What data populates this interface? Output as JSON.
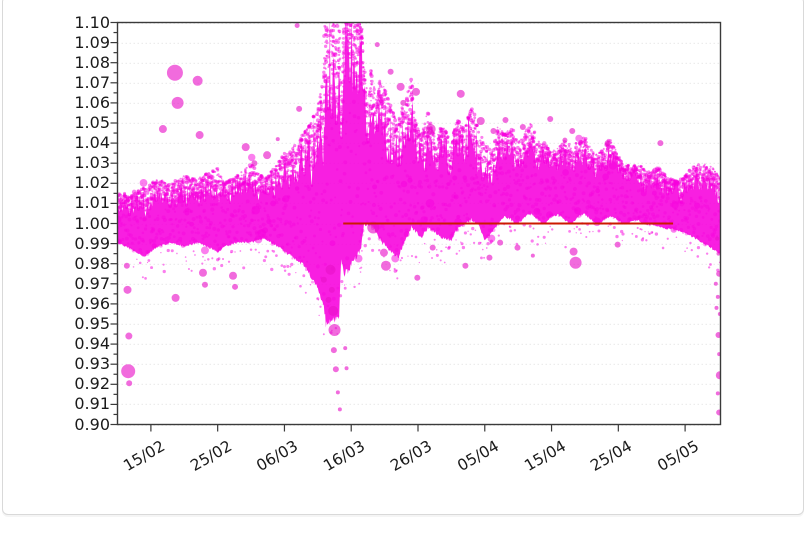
{
  "page": {
    "background": "#ffffff",
    "card_border": "#d9d9d9"
  },
  "chart_data": {
    "type": "scatter",
    "title": "",
    "xlabel": "",
    "ylabel": "",
    "x_axis": {
      "tick_labels": [
        "15/02",
        "25/02",
        "06/03",
        "16/03",
        "26/03",
        "05/04",
        "15/04",
        "25/04",
        "05/05"
      ],
      "tick_days": [
        5,
        15,
        25,
        35,
        45,
        55,
        65,
        75,
        85
      ],
      "domain_days": [
        0,
        90.3
      ],
      "start_day_date": "10/02",
      "label_rotation_deg": 30
    },
    "y_axis": {
      "min": 0.9,
      "max": 1.1,
      "major_step": 0.01,
      "minor_step": 0.005,
      "tick_labels": [
        "1.10",
        "1.09",
        "1.08",
        "1.07",
        "1.06",
        "1.05",
        "1.04",
        "1.03",
        "1.02",
        "1.01",
        "1.00",
        "0.99",
        "0.98",
        "0.97",
        "0.96",
        "0.95",
        "0.94",
        "0.93",
        "0.92",
        "0.91",
        "0.90"
      ]
    },
    "grid": {
      "horizontal": true,
      "vertical": false,
      "color": "#bdbdbd"
    },
    "legend": null,
    "reference_line": {
      "y": 1.0,
      "from_day": 33.8,
      "to_day": 83.2,
      "color": "#cc1a00",
      "width": 2
    },
    "series": {
      "name": "ratio-bubble-scatter",
      "marker": "circle",
      "color": "#f700dd",
      "description": "dense cloud of variable-size magenta bubbles around 1.00; extreme volatility spike mid-March exceeding the 1.10 axis limit, with low excursions to 0.90; band re-centers near 1.02 afterwards and tightens toward early May; final-day smear down to 0.90 at right edge"
    },
    "band_envelope": [
      [
        0,
        0.99,
        1.016
      ],
      [
        2,
        0.987,
        1.014
      ],
      [
        4,
        0.983,
        1.018
      ],
      [
        6,
        0.988,
        1.022
      ],
      [
        8,
        0.99,
        1.02
      ],
      [
        10,
        0.988,
        1.024
      ],
      [
        12,
        0.99,
        1.022
      ],
      [
        14,
        0.987,
        1.026
      ],
      [
        15,
        0.985,
        1.028
      ],
      [
        16,
        0.988,
        1.02
      ],
      [
        18,
        0.99,
        1.024
      ],
      [
        20,
        0.99,
        1.03
      ],
      [
        22,
        0.992,
        1.022
      ],
      [
        24,
        0.988,
        1.03
      ],
      [
        25,
        0.985,
        1.035
      ],
      [
        26,
        0.983,
        1.038
      ],
      [
        27,
        0.98,
        1.04
      ],
      [
        28,
        0.978,
        1.046
      ],
      [
        29,
        0.972,
        1.05
      ],
      [
        30,
        0.966,
        1.058
      ],
      [
        30.8,
        0.958,
        1.072
      ],
      [
        31.2,
        0.948,
        1.115
      ],
      [
        33.2,
        0.952,
        1.115
      ],
      [
        33.5,
        0.982,
        1.058
      ],
      [
        33.9,
        0.972,
        1.115
      ],
      [
        36.4,
        0.984,
        1.115
      ],
      [
        36.9,
        0.998,
        1.08
      ],
      [
        37.5,
        0.999,
        1.062
      ],
      [
        38.1,
        0.997,
        1.082
      ],
      [
        38.7,
        0.995,
        1.058
      ],
      [
        39.3,
        0.991,
        1.072
      ],
      [
        40,
        0.988,
        1.068
      ],
      [
        41,
        0.985,
        1.058
      ],
      [
        42,
        0.982,
        1.052
      ],
      [
        43,
        0.99,
        1.06
      ],
      [
        44,
        0.997,
        1.072
      ],
      [
        44.7,
        0.995,
        1.05
      ],
      [
        45.5,
        0.992,
        1.044
      ],
      [
        46.5,
        0.997,
        1.056
      ],
      [
        47.5,
        0.995,
        1.042
      ],
      [
        48.5,
        0.992,
        1.048
      ],
      [
        50,
        0.991,
        1.044
      ],
      [
        51,
        0.997,
        1.052
      ],
      [
        52,
        0.999,
        1.046
      ],
      [
        53,
        1.001,
        1.06
      ],
      [
        54,
        0.999,
        1.046
      ],
      [
        55,
        0.991,
        1.04
      ],
      [
        56,
        0.995,
        1.036
      ],
      [
        57,
        0.999,
        1.048
      ],
      [
        58,
        1.003,
        1.044
      ],
      [
        59,
        1.001,
        1.05
      ],
      [
        60,
        0.999,
        1.04
      ],
      [
        61,
        1.003,
        1.046
      ],
      [
        62,
        1.004,
        1.05
      ],
      [
        63,
        1.001,
        1.042
      ],
      [
        64,
        0.999,
        1.04
      ],
      [
        65,
        1.003,
        1.036
      ],
      [
        66,
        1.004,
        1.038
      ],
      [
        67,
        1.001,
        1.042
      ],
      [
        68,
        0.999,
        1.038
      ],
      [
        69,
        1.003,
        1.042
      ],
      [
        70,
        1.004,
        1.044
      ],
      [
        71,
        1.001,
        1.036
      ],
      [
        72,
        0.999,
        1.034
      ],
      [
        73,
        1.002,
        1.04
      ],
      [
        74,
        1.003,
        1.042
      ],
      [
        75,
        1.001,
        1.034
      ],
      [
        76,
        0.999,
        1.03
      ],
      [
        77,
        1.001,
        1.028
      ],
      [
        78,
        1.001,
        1.03
      ],
      [
        79,
        0.999,
        1.026
      ],
      [
        80,
        0.999,
        1.026
      ],
      [
        81,
        0.998,
        1.028
      ],
      [
        82,
        0.997,
        1.024
      ],
      [
        83,
        0.997,
        1.022
      ],
      [
        84,
        0.996,
        1.021
      ],
      [
        85,
        0.995,
        1.024
      ],
      [
        86,
        0.993,
        1.028
      ],
      [
        87,
        0.991,
        1.03
      ],
      [
        88,
        0.989,
        1.03
      ],
      [
        89,
        0.987,
        1.028
      ],
      [
        90.3,
        0.984,
        1.024
      ]
    ],
    "outlier_bubbles": [
      [
        1.4,
        0.979,
        3
      ],
      [
        1.5,
        0.967,
        4
      ],
      [
        1.7,
        0.944,
        3.5
      ],
      [
        1.6,
        0.9265,
        7
      ],
      [
        1.75,
        0.9205,
        3
      ],
      [
        6.8,
        1.047,
        4
      ],
      [
        8.6,
        1.075,
        8
      ],
      [
        9.0,
        1.06,
        6
      ],
      [
        12.0,
        1.071,
        5
      ],
      [
        12.3,
        1.044,
        4
      ],
      [
        8.7,
        0.963,
        4
      ],
      [
        12.8,
        0.9755,
        4
      ],
      [
        13.1,
        0.9695,
        3
      ],
      [
        17.3,
        0.974,
        4
      ],
      [
        17.6,
        0.9685,
        3
      ],
      [
        19.2,
        1.038,
        4
      ],
      [
        20.5,
        1.03,
        3
      ],
      [
        22.4,
        1.034,
        4
      ],
      [
        24.0,
        1.042,
        2
      ],
      [
        26.9,
        1.0985,
        2.5
      ],
      [
        27.2,
        1.057,
        3
      ],
      [
        30.2,
        1.048,
        3
      ],
      [
        30.9,
        0.972,
        3
      ],
      [
        31.6,
        0.962,
        3
      ],
      [
        31.9,
        0.977,
        5
      ],
      [
        32.1,
        0.967,
        3
      ],
      [
        32.3,
        0.9565,
        5
      ],
      [
        32.5,
        0.947,
        6
      ],
      [
        32.4,
        0.937,
        3
      ],
      [
        32.7,
        0.9275,
        3
      ],
      [
        33.0,
        0.916,
        2
      ],
      [
        33.3,
        0.9075,
        2
      ],
      [
        33.6,
        0.896,
        2
      ],
      [
        34.1,
        0.938,
        2
      ],
      [
        34.3,
        0.928,
        2
      ],
      [
        38.3,
        0.998,
        6
      ],
      [
        38.9,
        1.089,
        2.5
      ],
      [
        39.9,
        0.9855,
        4
      ],
      [
        40.2,
        0.979,
        5
      ],
      [
        40.9,
        1.0755,
        3
      ],
      [
        42.4,
        1.068,
        4
      ],
      [
        42.8,
        1.06,
        3
      ],
      [
        44.7,
        1.0655,
        4
      ],
      [
        44.9,
        0.973,
        3
      ],
      [
        46.9,
        1.047,
        5
      ],
      [
        47.2,
        0.988,
        3
      ],
      [
        51.4,
        1.0645,
        4
      ],
      [
        52.1,
        0.979,
        3
      ],
      [
        54.4,
        1.051,
        4
      ],
      [
        55.7,
        0.983,
        3
      ],
      [
        56.3,
        1.046,
        3
      ],
      [
        57.3,
        0.9905,
        3
      ],
      [
        58.1,
        1.0515,
        3
      ],
      [
        59.9,
        0.988,
        3
      ],
      [
        60.7,
        1.048,
        3
      ],
      [
        62.2,
        0.984,
        2
      ],
      [
        64.8,
        1.052,
        3
      ],
      [
        67.0,
        1.0415,
        2.5
      ],
      [
        68.1,
        1.046,
        3
      ],
      [
        68.3,
        0.986,
        4
      ],
      [
        68.6,
        0.9805,
        6
      ],
      [
        73.4,
        1.04,
        3
      ],
      [
        74.9,
        0.9895,
        3
      ],
      [
        81.3,
        1.04,
        3
      ],
      [
        89.6,
        0.97,
        2
      ],
      [
        89.7,
        0.958,
        2
      ],
      [
        89.8,
        0.9925,
        2
      ],
      [
        89.9,
        0.9635,
        2
      ],
      [
        89.9,
        0.9155,
        2
      ],
      [
        90.0,
        0.985,
        2
      ],
      [
        90.0,
        0.9445,
        3
      ],
      [
        90.1,
        0.975,
        3
      ],
      [
        90.1,
        0.935,
        2
      ],
      [
        90.1,
        0.906,
        3
      ],
      [
        90.2,
        0.955,
        2
      ],
      [
        90.2,
        0.9245,
        4
      ],
      [
        90.2,
        0.8985,
        2
      ]
    ],
    "render": {
      "seed": 42,
      "step_days": 0.1,
      "core_alpha": 0.88,
      "fringe_alpha": 0.5,
      "wick_chance": 0.22,
      "bubble_chance": 0.05,
      "frame_color": "#3a3a3a",
      "tick_color": "#3a3a3a",
      "label_color": "#1a1a1a"
    }
  }
}
